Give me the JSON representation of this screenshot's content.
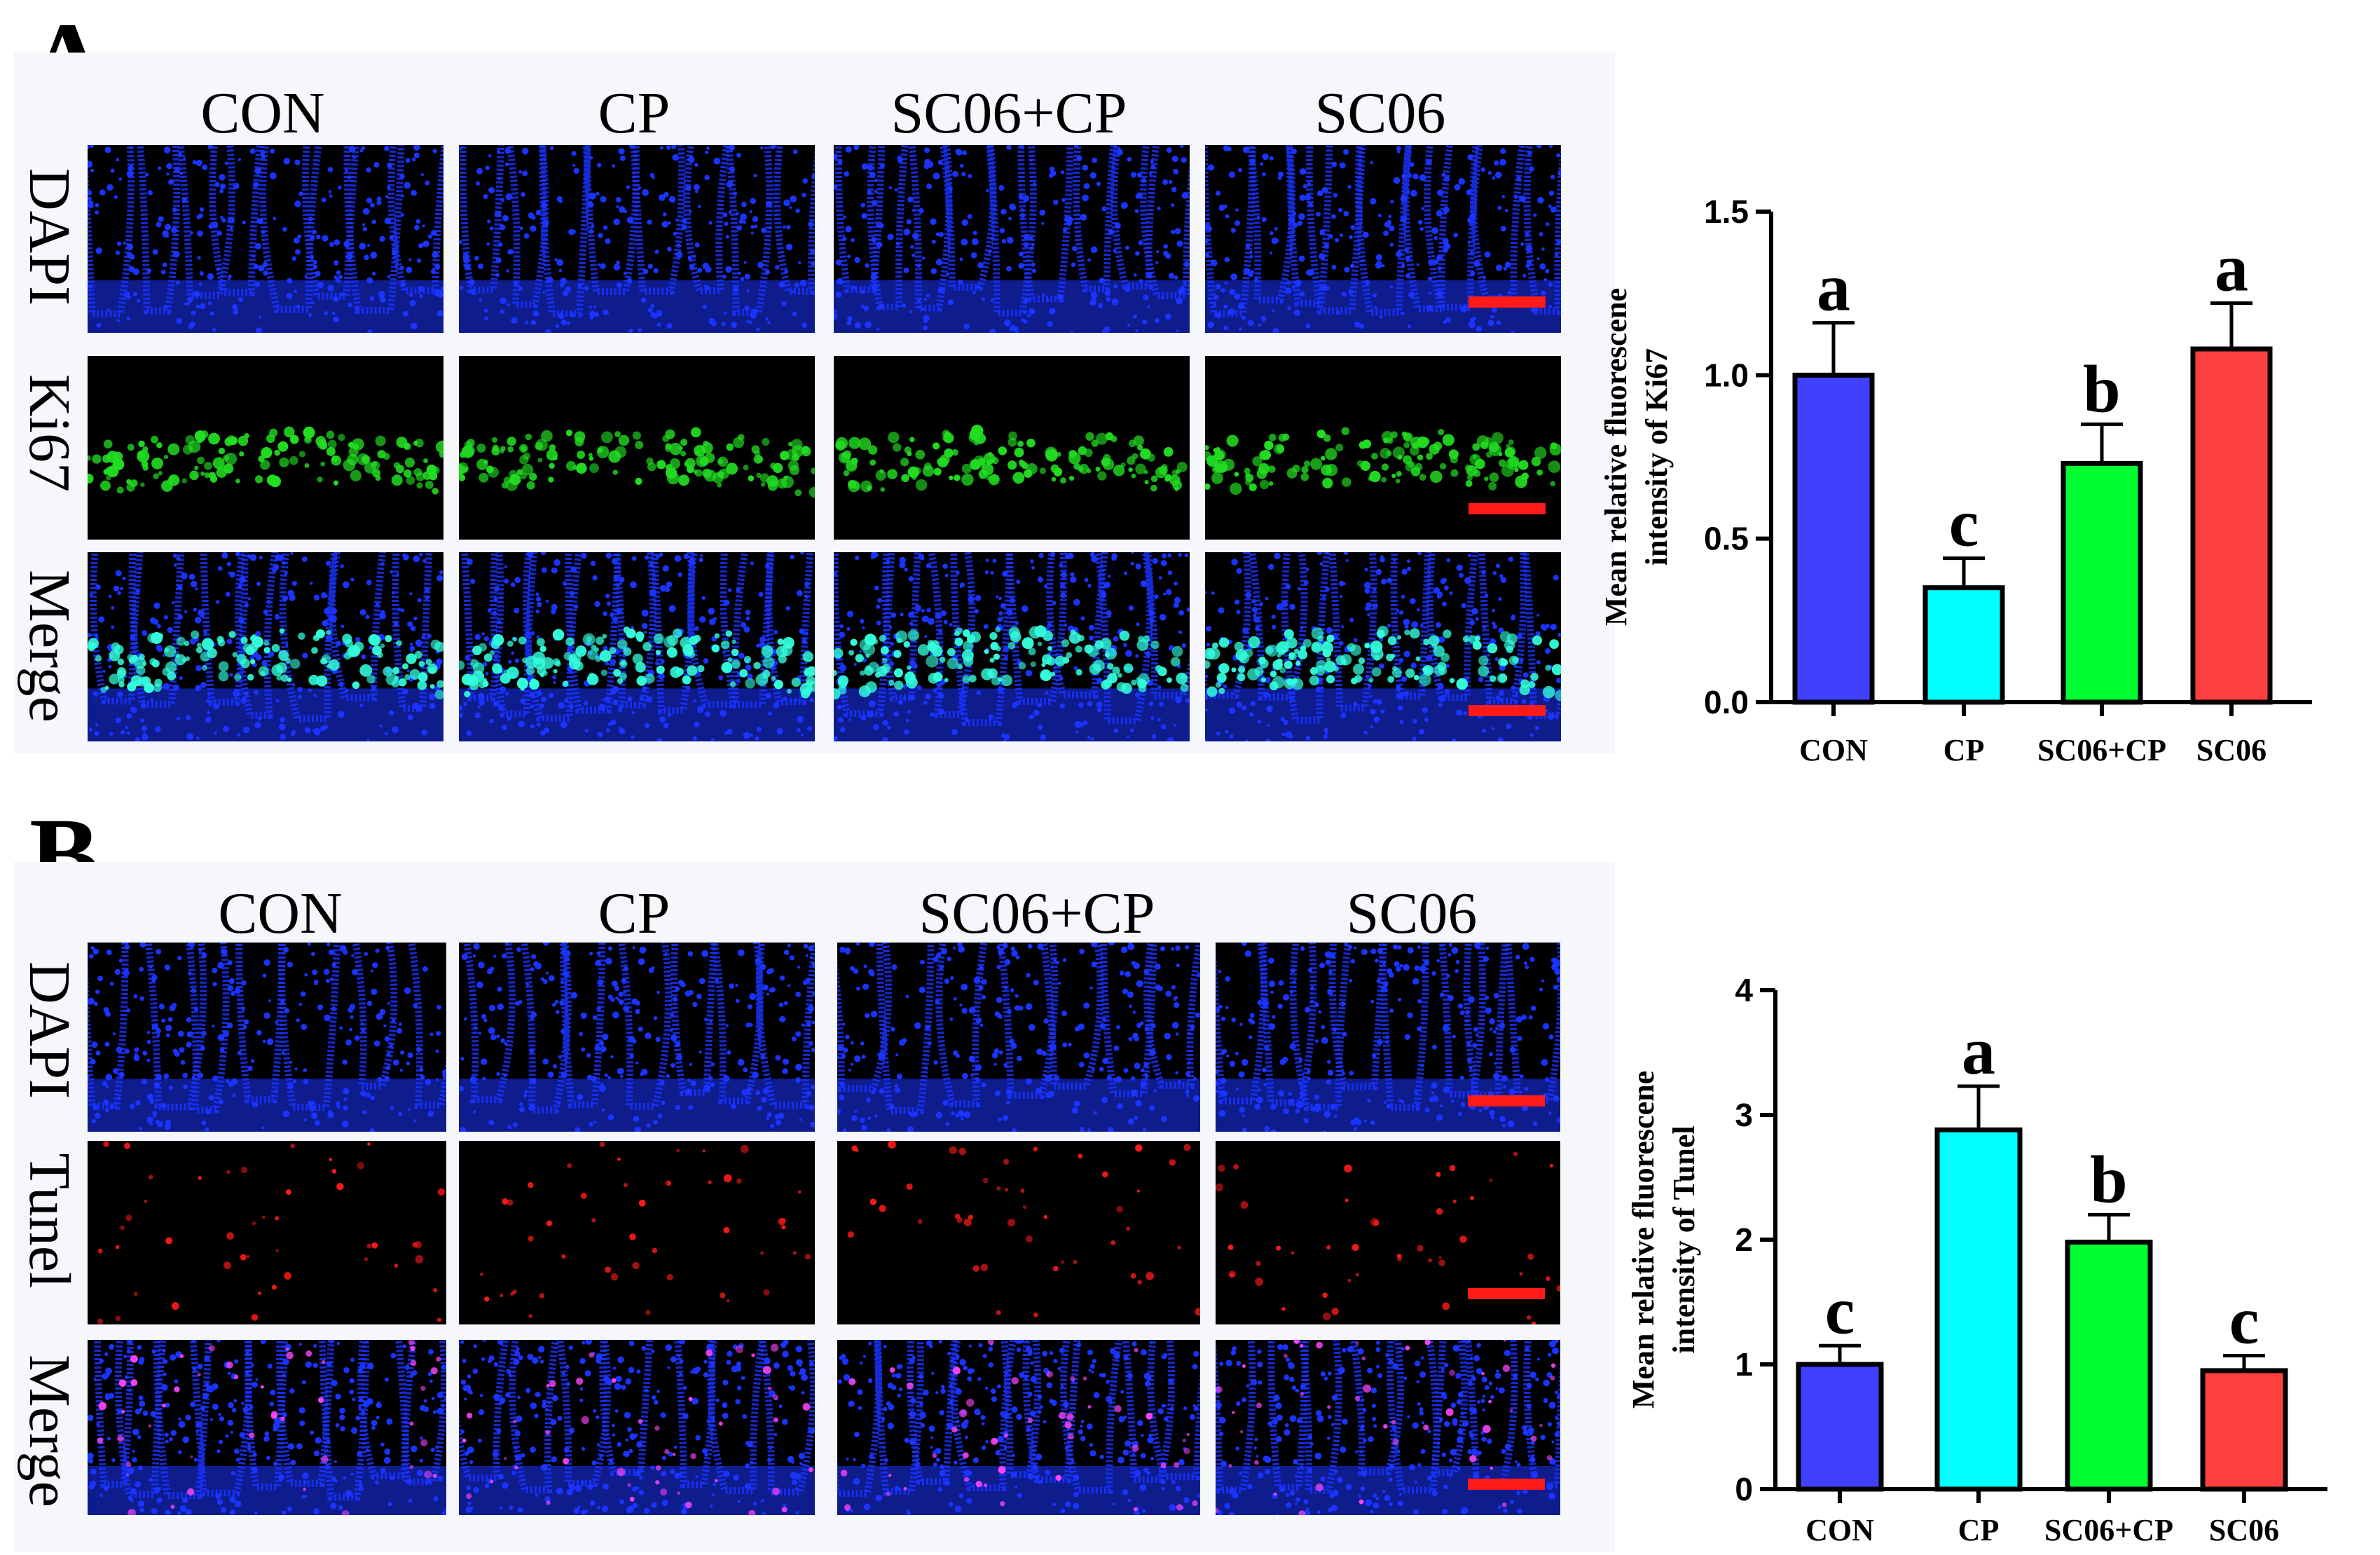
{
  "panels": [
    {
      "letter": "A",
      "columns": [
        "CON",
        "CP",
        "SC06+CP",
        "SC06"
      ],
      "rows": [
        {
          "label": "DAPI",
          "channel": "dapi"
        },
        {
          "label": "Ki67",
          "channel": "ki67"
        },
        {
          "label": "Merge",
          "channel": "merge-ki67"
        }
      ]
    },
    {
      "letter": "B",
      "columns": [
        "CON",
        "CP",
        "SC06+CP",
        "SC06"
      ],
      "rows": [
        {
          "label": "DAPI",
          "channel": "dapi"
        },
        {
          "label": "Tunel",
          "channel": "tunel"
        },
        {
          "label": "Merge",
          "channel": "merge-tunel"
        }
      ]
    }
  ],
  "colors": {
    "dapi": "#1a33ff",
    "ki67": "#22dd22",
    "tunel": "#ff1a1a",
    "scalebar": "#ff1a1a",
    "con": "#4040ff",
    "cp": "#00ffff",
    "sc06cp": "#00ff30",
    "sc06": "#ff4040"
  },
  "chart_data": [
    {
      "type": "bar",
      "categories": [
        "CON",
        "CP",
        "SC06+CP",
        "SC06"
      ],
      "values": [
        1.0,
        0.35,
        0.73,
        1.08
      ],
      "errors": [
        0.16,
        0.09,
        0.12,
        0.14
      ],
      "letters": [
        "a",
        "c",
        "b",
        "a"
      ],
      "bar_colors": [
        "#4040ff",
        "#00ffff",
        "#00ff30",
        "#ff4040"
      ],
      "ylabel": "Mean relative fluorescene intensity of Ki67",
      "ylim": [
        0,
        1.5
      ],
      "yticks": [
        "0.0",
        "0.5",
        "1.0",
        "1.5"
      ]
    },
    {
      "type": "bar",
      "categories": [
        "CON",
        "CP",
        "SC06+CP",
        "SC06"
      ],
      "values": [
        1.0,
        2.88,
        1.98,
        0.95
      ],
      "errors": [
        0.15,
        0.35,
        0.22,
        0.12
      ],
      "letters": [
        "c",
        "a",
        "b",
        "c"
      ],
      "bar_colors": [
        "#4040ff",
        "#00ffff",
        "#00ff30",
        "#ff4040"
      ],
      "ylabel": "Mean relative fluorescene intensity of Tunel",
      "ylim": [
        0,
        4
      ],
      "yticks": [
        "0",
        "1",
        "2",
        "3",
        "4"
      ]
    }
  ]
}
